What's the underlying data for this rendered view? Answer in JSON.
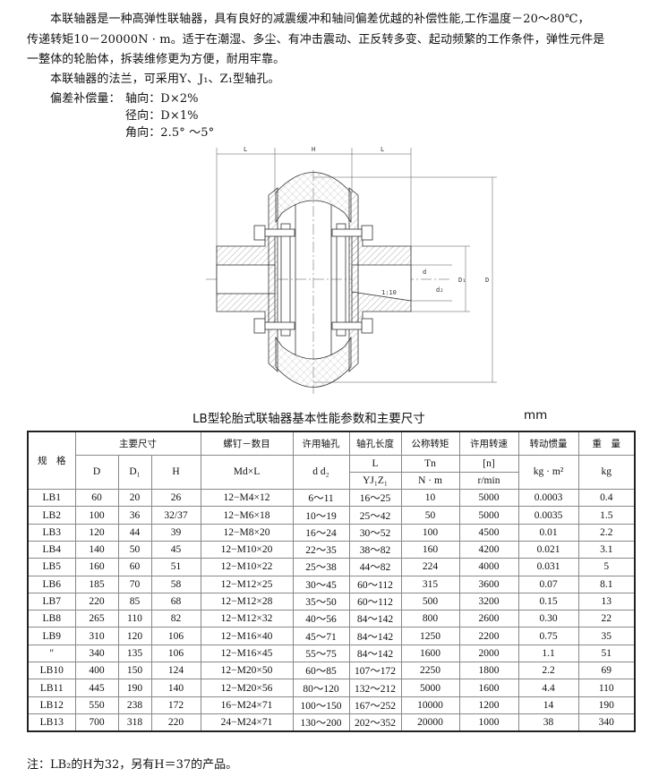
{
  "intro": {
    "para1_line1": "本联轴器是一种高弹性联轴器，具有良好的减震缓冲和轴间偏差优越的补偿性能,工作温度－20～80℃，",
    "para1_line2": "传递转矩10－20000N · m。适于在潮湿、多尘、有冲击震动、正反转多变、起动频繁的工作条件，弹性元件是",
    "para1_line3": "一整体的轮胎体，拆装维修更为方便，耐用牢靠。",
    "para2": "本联轴器的法兰，可采用Y、J₁、Z₁型轴孔。",
    "deviation_label": "偏差补偿量：",
    "axial": "轴向：D×2%",
    "radial": "径向：D×1%",
    "angular": "角向：2.5° ～5°"
  },
  "drawing": {
    "labels": {
      "L": "L",
      "H": "H",
      "d": "d",
      "d2": "d₂",
      "D1": "D₁",
      "D": "D",
      "taper": "1:10"
    }
  },
  "table": {
    "title": "LB型轮胎式联轴器基本性能参数和主要尺寸",
    "unit": "mm",
    "header": {
      "spec": "规　格",
      "main_dims": "主要尺寸",
      "D": "D",
      "D1": "D₁",
      "H": "H",
      "bolt": "螺钉－数目",
      "bolt_sub": "Md×L",
      "bore": "许用轴孔",
      "bore_sub": "d  d₂",
      "bore_len": "轴孔长度",
      "bore_len_sub1": "L",
      "bore_len_sub2": "YJ₁Z₁",
      "torque": "公称转矩",
      "torque_sub1": "Tn",
      "torque_sub2": "N · m",
      "speed": "许用转速",
      "speed_sub1": "[n]",
      "speed_sub2": "r/min",
      "inertia": "转动惯量",
      "inertia_sub": "kg · m²",
      "weight": "重　量",
      "weight_sub": "kg"
    },
    "rows": [
      [
        "LB1",
        "60",
        "20",
        "26",
        "12−M4×12",
        "6～11",
        "16～25",
        "10",
        "5000",
        "0.0003",
        "0.4"
      ],
      [
        "LB2",
        "100",
        "36",
        "32/37",
        "12−M6×18",
        "10～19",
        "25～42",
        "50",
        "5000",
        "0.0035",
        "1.5"
      ],
      [
        "LB3",
        "120",
        "44",
        "39",
        "12−M8×20",
        "16～24",
        "30～52",
        "100",
        "4500",
        "0.01",
        "2.2"
      ],
      [
        "LB4",
        "140",
        "50",
        "45",
        "12−M10×20",
        "22～35",
        "38～82",
        "160",
        "4200",
        "0.021",
        "3.1"
      ],
      [
        "LB5",
        "160",
        "60",
        "51",
        "12−M10×22",
        "25～38",
        "44～82",
        "224",
        "4000",
        "0.031",
        "5"
      ],
      [
        "LB6",
        "185",
        "70",
        "58",
        "12−M12×25",
        "30～45",
        "60～112",
        "315",
        "3600",
        "0.07",
        "8.1"
      ],
      [
        "LB7",
        "220",
        "85",
        "68",
        "12−M12×28",
        "35～50",
        "60～112",
        "500",
        "3200",
        "0.15",
        "13"
      ],
      [
        "LB8",
        "265",
        "110",
        "82",
        "12−M12×32",
        "40～56",
        "84～142",
        "800",
        "2600",
        "0.30",
        "22"
      ],
      [
        "LB9",
        "310",
        "120",
        "106",
        "12−M16×40",
        "45～71",
        "84～142",
        "1250",
        "2200",
        "0.75",
        "35"
      ],
      [
        "″",
        "340",
        "135",
        "106",
        "12−M16×45",
        "55～75",
        "84～142",
        "1600",
        "2000",
        "1.1",
        "51"
      ],
      [
        "LB10",
        "400",
        "150",
        "124",
        "12−M20×50",
        "60～85",
        "107～172",
        "2250",
        "1800",
        "2.2",
        "69"
      ],
      [
        "LB11",
        "445",
        "190",
        "140",
        "12−M20×56",
        "80～120",
        "132～212",
        "5000",
        "1600",
        "4.4",
        "110"
      ],
      [
        "LB12",
        "550",
        "238",
        "172",
        "16−M24×71",
        "100～150",
        "167～252",
        "10000",
        "1200",
        "14",
        "190"
      ],
      [
        "LB13",
        "700",
        "318",
        "220",
        "24−M24×71",
        "130～200",
        "202～352",
        "20000",
        "1000",
        "38",
        "340"
      ]
    ]
  },
  "note": "注：LB₂的H为32，另有H＝37的产品。"
}
